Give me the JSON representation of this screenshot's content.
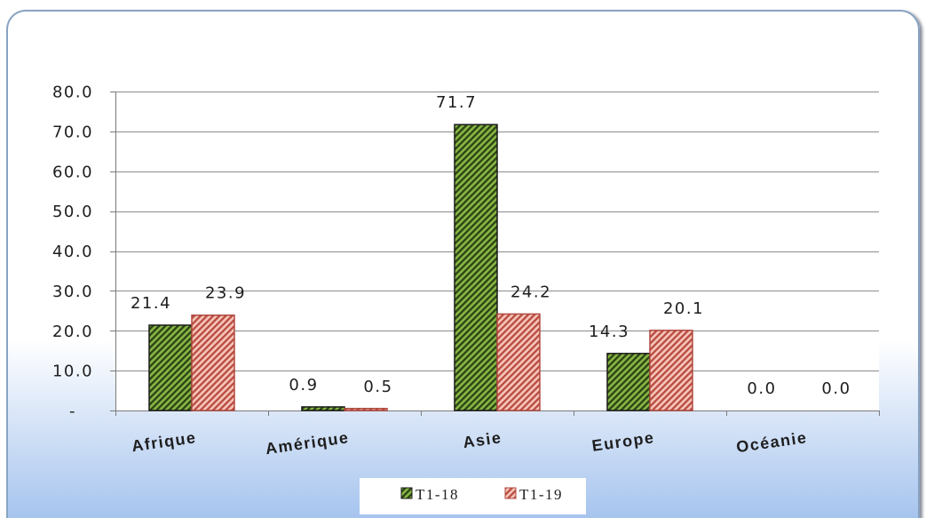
{
  "chart_data": {
    "type": "bar",
    "categories": [
      "Afrique",
      "Amérique",
      "Asie",
      "Europe",
      "Océanie"
    ],
    "series": [
      {
        "name": "T1-18",
        "values": [
          21.4,
          0.9,
          71.7,
          14.3,
          0.0
        ],
        "labels": [
          "21.4",
          "0.9",
          "71.7",
          "14.3",
          "0.0"
        ],
        "color": "#86b545",
        "hatch_color": "#2b4212",
        "border_color": "#1a1a1a"
      },
      {
        "name": "T1-19",
        "values": [
          23.9,
          0.5,
          24.2,
          20.1,
          0.0
        ],
        "labels": [
          "23.9",
          "0.5",
          "24.2",
          "20.1",
          "0.0"
        ],
        "color": "#f6c3b9",
        "hatch_color": "#b84b3f",
        "border_color": "#b04a40"
      }
    ],
    "ylim": [
      0,
      80
    ],
    "yticks": [
      0,
      10,
      20,
      30,
      40,
      50,
      60,
      70,
      80
    ],
    "ytick_labels": [
      "-",
      "10.0",
      "20.0",
      "30.0",
      "40.0",
      "50.0",
      "60.0",
      "70.0",
      "80.0"
    ],
    "grid": true,
    "data_labels": true,
    "legend": "bottom"
  },
  "colors": {
    "background_top": "#ffffff",
    "background_bottom": "#a6c4ee",
    "panel_border": "#8aa3c2",
    "gridline": "#8c8c8c",
    "axis": "#7a7a7a",
    "text": "#1e1e1e"
  }
}
